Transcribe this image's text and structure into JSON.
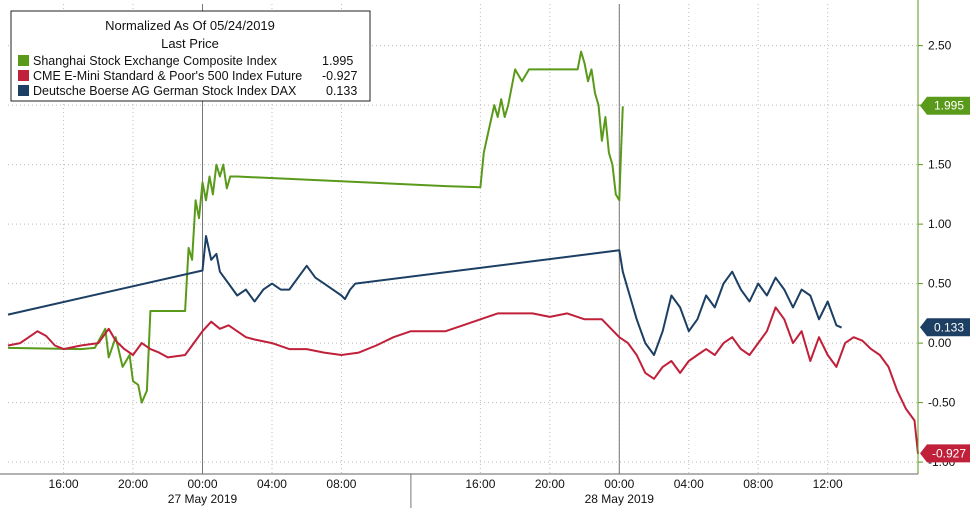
{
  "chart_data": {
    "type": "line",
    "title": "Normalized As Of 05/24/2019",
    "subtitle": "Last Price",
    "x_tick_labels": [
      "16:00",
      "20:00",
      "00:00",
      "04:00",
      "08:00",
      "16:00",
      "20:00",
      "00:00",
      "04:00",
      "08:00",
      "12:00"
    ],
    "x_tick_hours": [
      0,
      4,
      8,
      12,
      16,
      24,
      28,
      32,
      36,
      40,
      44
    ],
    "x_date_labels": [
      {
        "label": "27 May 2019",
        "hour": 8
      },
      {
        "label": "28 May 2019",
        "hour": 32
      }
    ],
    "x_range_hours": [
      -3.2,
      49.2
    ],
    "ylim": [
      -1.1,
      2.85
    ],
    "y_ticks": [
      2.5,
      2.0,
      1.5,
      1.0,
      0.5,
      0.0,
      -0.5,
      -1.0
    ],
    "y_tick_labels": [
      "2.50",
      "2.00",
      "1.50",
      "1.00",
      "0.50",
      "0.00",
      "-0.50",
      "-1.00"
    ],
    "grid": true,
    "legend_position": "top-left",
    "series": [
      {
        "name": "Shanghai Stock Exchange Composite Index",
        "last_value": "1.995",
        "color": "#5a9a1a",
        "points": [
          [
            -3.2,
            -0.04
          ],
          [
            1.0,
            -0.05
          ],
          [
            1.8,
            -0.04
          ],
          [
            2.4,
            0.12
          ],
          [
            2.6,
            -0.12
          ],
          [
            3.0,
            0.05
          ],
          [
            3.4,
            -0.2
          ],
          [
            3.8,
            -0.1
          ],
          [
            4.0,
            -0.32
          ],
          [
            4.3,
            -0.35
          ],
          [
            4.5,
            -0.5
          ],
          [
            4.8,
            -0.4
          ],
          [
            5.0,
            0.27
          ],
          [
            7.0,
            0.27
          ],
          [
            7.2,
            0.8
          ],
          [
            7.4,
            0.7
          ],
          [
            7.6,
            1.2
          ],
          [
            7.8,
            1.05
          ],
          [
            8.0,
            1.35
          ],
          [
            8.2,
            1.2
          ],
          [
            8.4,
            1.4
          ],
          [
            8.6,
            1.25
          ],
          [
            8.8,
            1.5
          ],
          [
            9.0,
            1.4
          ],
          [
            9.2,
            1.5
          ],
          [
            9.4,
            1.3
          ],
          [
            9.6,
            1.4
          ],
          [
            10.0,
            1.4
          ],
          [
            22.0,
            1.32
          ],
          [
            24.0,
            1.31
          ],
          [
            24.2,
            1.6
          ],
          [
            24.5,
            1.8
          ],
          [
            24.8,
            2.0
          ],
          [
            25.0,
            1.9
          ],
          [
            25.2,
            2.05
          ],
          [
            25.4,
            1.9
          ],
          [
            25.6,
            2.0
          ],
          [
            26.0,
            2.3
          ],
          [
            26.4,
            2.2
          ],
          [
            26.8,
            2.3
          ],
          [
            29.6,
            2.3
          ],
          [
            29.8,
            2.45
          ],
          [
            30.0,
            2.35
          ],
          [
            30.2,
            2.2
          ],
          [
            30.4,
            2.3
          ],
          [
            30.6,
            2.1
          ],
          [
            30.8,
            2.0
          ],
          [
            31.0,
            1.7
          ],
          [
            31.2,
            1.9
          ],
          [
            31.4,
            1.6
          ],
          [
            31.6,
            1.5
          ],
          [
            31.8,
            1.25
          ],
          [
            32.0,
            1.2
          ],
          [
            32.1,
            1.6
          ],
          [
            32.2,
            1.99
          ]
        ]
      },
      {
        "name": "CME E-Mini Standard & Poor's 500 Index Future",
        "last_value": "-0.927",
        "color": "#c0203a",
        "points": [
          [
            -3.2,
            -0.02
          ],
          [
            -2.5,
            0.0
          ],
          [
            -2.0,
            0.05
          ],
          [
            -1.5,
            0.1
          ],
          [
            -1.0,
            0.06
          ],
          [
            -0.5,
            -0.02
          ],
          [
            0.0,
            -0.05
          ],
          [
            1.0,
            -0.02
          ],
          [
            2.0,
            0.0
          ],
          [
            2.6,
            0.12
          ],
          [
            3.0,
            0.02
          ],
          [
            3.5,
            -0.05
          ],
          [
            4.0,
            -0.1
          ],
          [
            4.5,
            0.0
          ],
          [
            5.0,
            -0.05
          ],
          [
            5.5,
            -0.08
          ],
          [
            6.0,
            -0.12
          ],
          [
            7.0,
            -0.1
          ],
          [
            7.5,
            0.0
          ],
          [
            8.0,
            0.1
          ],
          [
            8.5,
            0.18
          ],
          [
            9.0,
            0.12
          ],
          [
            9.5,
            0.15
          ],
          [
            10.0,
            0.1
          ],
          [
            10.5,
            0.05
          ],
          [
            11.0,
            0.03
          ],
          [
            12.0,
            0.0
          ],
          [
            13.0,
            -0.05
          ],
          [
            14.0,
            -0.05
          ],
          [
            15.0,
            -0.08
          ],
          [
            16.0,
            -0.1
          ],
          [
            17.0,
            -0.08
          ],
          [
            18.0,
            -0.02
          ],
          [
            19.0,
            0.05
          ],
          [
            20.0,
            0.1
          ],
          [
            21.0,
            0.1
          ],
          [
            22.0,
            0.1
          ],
          [
            23.0,
            0.15
          ],
          [
            24.0,
            0.2
          ],
          [
            25.0,
            0.25
          ],
          [
            26.0,
            0.25
          ],
          [
            27.0,
            0.25
          ],
          [
            28.0,
            0.22
          ],
          [
            29.0,
            0.25
          ],
          [
            30.0,
            0.2
          ],
          [
            31.0,
            0.2
          ],
          [
            32.0,
            0.05
          ],
          [
            32.5,
            0.0
          ],
          [
            33.0,
            -0.1
          ],
          [
            33.5,
            -0.25
          ],
          [
            34.0,
            -0.3
          ],
          [
            34.5,
            -0.2
          ],
          [
            35.0,
            -0.15
          ],
          [
            35.5,
            -0.25
          ],
          [
            36.0,
            -0.15
          ],
          [
            36.5,
            -0.1
          ],
          [
            37.0,
            -0.05
          ],
          [
            37.5,
            -0.1
          ],
          [
            38.0,
            0.0
          ],
          [
            38.5,
            0.05
          ],
          [
            39.0,
            -0.05
          ],
          [
            39.5,
            -0.1
          ],
          [
            40.0,
            0.0
          ],
          [
            40.5,
            0.1
          ],
          [
            41.0,
            0.3
          ],
          [
            41.5,
            0.2
          ],
          [
            42.0,
            0.0
          ],
          [
            42.5,
            0.1
          ],
          [
            43.0,
            -0.15
          ],
          [
            43.5,
            0.05
          ],
          [
            44.0,
            -0.1
          ],
          [
            44.5,
            -0.2
          ],
          [
            45.0,
            0.0
          ],
          [
            45.5,
            0.05
          ],
          [
            46.0,
            0.02
          ],
          [
            46.5,
            -0.05
          ],
          [
            47.0,
            -0.1
          ],
          [
            47.5,
            -0.2
          ],
          [
            48.0,
            -0.4
          ],
          [
            48.5,
            -0.55
          ],
          [
            49.0,
            -0.65
          ],
          [
            49.2,
            -0.93
          ]
        ]
      },
      {
        "name": "Deutsche Boerse AG German Stock Index DAX",
        "last_value": "0.133",
        "color": "#1c3f63",
        "points": [
          [
            -3.2,
            0.24
          ],
          [
            8.0,
            0.61
          ],
          [
            8.2,
            0.9
          ],
          [
            8.5,
            0.7
          ],
          [
            8.8,
            0.75
          ],
          [
            9.0,
            0.6
          ],
          [
            9.5,
            0.5
          ],
          [
            10.0,
            0.4
          ],
          [
            10.5,
            0.45
          ],
          [
            11.0,
            0.35
          ],
          [
            11.5,
            0.45
          ],
          [
            12.0,
            0.5
          ],
          [
            12.5,
            0.45
          ],
          [
            13.0,
            0.45
          ],
          [
            13.5,
            0.55
          ],
          [
            14.0,
            0.65
          ],
          [
            14.5,
            0.55
          ],
          [
            15.0,
            0.5
          ],
          [
            15.5,
            0.45
          ],
          [
            16.0,
            0.4
          ],
          [
            16.2,
            0.37
          ],
          [
            16.5,
            0.45
          ],
          [
            16.8,
            0.5
          ],
          [
            32.0,
            0.78
          ],
          [
            32.2,
            0.6
          ],
          [
            32.5,
            0.45
          ],
          [
            33.0,
            0.2
          ],
          [
            33.5,
            0.0
          ],
          [
            34.0,
            -0.1
          ],
          [
            34.5,
            0.1
          ],
          [
            35.0,
            0.4
          ],
          [
            35.5,
            0.3
          ],
          [
            36.0,
            0.1
          ],
          [
            36.5,
            0.2
          ],
          [
            37.0,
            0.4
          ],
          [
            37.5,
            0.3
          ],
          [
            38.0,
            0.5
          ],
          [
            38.5,
            0.6
          ],
          [
            39.0,
            0.45
          ],
          [
            39.5,
            0.35
          ],
          [
            40.0,
            0.5
          ],
          [
            40.5,
            0.4
          ],
          [
            41.0,
            0.55
          ],
          [
            41.5,
            0.45
          ],
          [
            42.0,
            0.3
          ],
          [
            42.5,
            0.45
          ],
          [
            43.0,
            0.4
          ],
          [
            43.5,
            0.2
          ],
          [
            44.0,
            0.35
          ],
          [
            44.5,
            0.15
          ],
          [
            44.8,
            0.13
          ]
        ]
      }
    ]
  }
}
